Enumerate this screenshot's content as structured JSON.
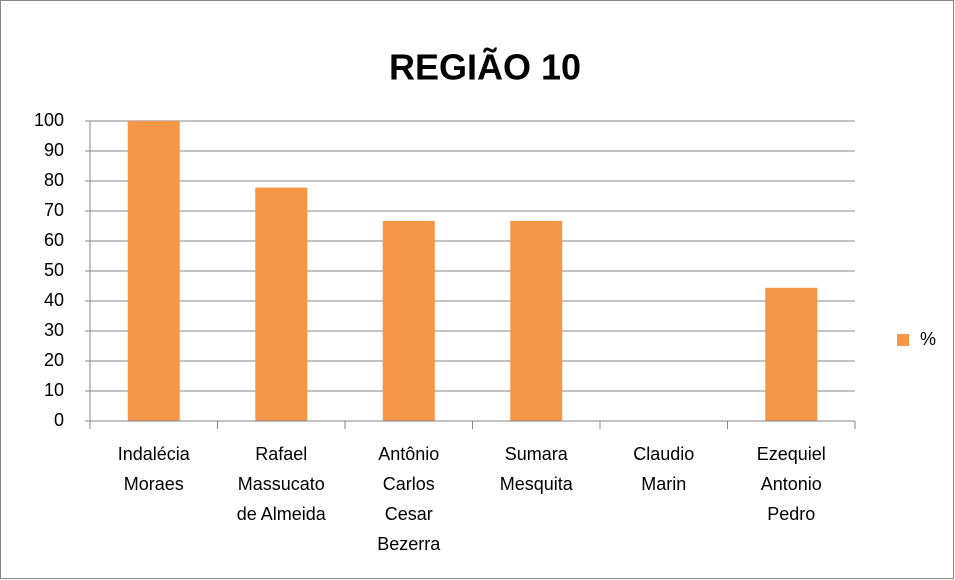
{
  "chart_data": {
    "type": "bar",
    "title": "REGIÃO  10",
    "categories": [
      "Indalécia\nMoraes",
      "Rafael\nMassucato\nde Almeida",
      "Antônio\nCarlos\nCesar\nBezerra",
      "Sumara\nMesquita",
      "Claudio\nMarin",
      "Ezequiel\nAntonio\nPedro"
    ],
    "series": [
      {
        "name": "%",
        "color": "#f79646",
        "values": [
          100,
          77.8,
          66.7,
          66.7,
          0,
          44.4
        ]
      }
    ],
    "ylim": [
      0,
      100
    ],
    "yticks": [
      0,
      10,
      20,
      30,
      40,
      50,
      60,
      70,
      80,
      90,
      100
    ],
    "grid": true,
    "legend": "right"
  }
}
